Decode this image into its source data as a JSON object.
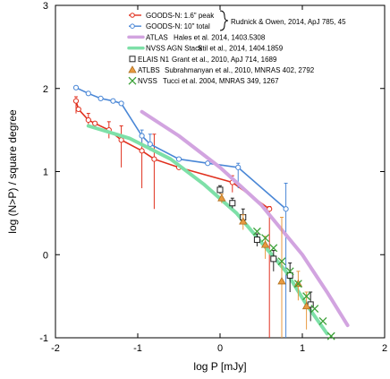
{
  "chart_data": {
    "type": "scatter",
    "xlabel": "log P [mJy]",
    "ylabel": "log (N>P) / square degree",
    "xlim": [
      -2,
      2
    ],
    "ylim": [
      -1,
      3
    ],
    "x_ticks": [
      "-2",
      "-1",
      "0",
      "1",
      "2"
    ],
    "y_ticks": [
      "-1",
      "0",
      "1",
      "2",
      "3"
    ],
    "grid": false,
    "legend_position": "top-right",
    "brace_text": "Rudnick & Owen, 2014, ApJ 785, 45",
    "series": [
      {
        "name": "GOODS-N: 1.6\" peak",
        "kind": "line-open-markers",
        "color": "#e0301e",
        "points": [
          {
            "x": -1.75,
            "y": 1.85,
            "lo": 1.7,
            "hi": 1.9
          },
          {
            "x": -1.72,
            "y": 1.75
          },
          {
            "x": -1.6,
            "y": 1.62,
            "lo": 1.55,
            "hi": 1.7
          },
          {
            "x": -1.52,
            "y": 1.58
          },
          {
            "x": -1.35,
            "y": 1.5,
            "lo": 1.4,
            "hi": 1.6
          },
          {
            "x": -1.2,
            "y": 1.38,
            "lo": 1.05,
            "hi": 1.55
          },
          {
            "x": -0.95,
            "y": 1.25,
            "lo": 0.8,
            "hi": 1.45
          },
          {
            "x": -0.8,
            "y": 1.15,
            "lo": 0.55,
            "hi": 1.45
          },
          {
            "x": -0.5,
            "y": 1.05
          },
          {
            "x": 0.15,
            "y": 0.87,
            "lo": 0.75,
            "hi": 0.95
          },
          {
            "x": 0.6,
            "y": 0.55,
            "lo": -1.0,
            "hi": 0.58
          }
        ]
      },
      {
        "name": "GOODS-N: 10\" total",
        "kind": "line-open-markers",
        "color": "#4a87d6",
        "points": [
          {
            "x": -1.75,
            "y": 2.01
          },
          {
            "x": -1.6,
            "y": 1.94
          },
          {
            "x": -1.45,
            "y": 1.88
          },
          {
            "x": -1.3,
            "y": 1.85
          },
          {
            "x": -1.2,
            "y": 1.82
          },
          {
            "x": -0.95,
            "y": 1.43,
            "lo": 1.35,
            "hi": 1.5
          },
          {
            "x": -0.85,
            "y": 1.33,
            "lo": 1.25,
            "hi": 1.45
          },
          {
            "x": -0.5,
            "y": 1.15
          },
          {
            "x": -0.15,
            "y": 1.1
          },
          {
            "x": 0.22,
            "y": 1.05,
            "lo": 0.8,
            "hi": 1.1
          },
          {
            "x": 0.8,
            "y": 0.55,
            "lo": -1.0,
            "hi": 0.86
          }
        ]
      },
      {
        "name": "ATLAS",
        "ref": "Hales et al. 2014, 1403.5308",
        "kind": "line",
        "color": "#d2a4e0",
        "points": [
          {
            "x": -0.95,
            "y": 1.72
          },
          {
            "x": -0.5,
            "y": 1.43
          },
          {
            "x": 0.0,
            "y": 1.05
          },
          {
            "x": 0.5,
            "y": 0.6
          },
          {
            "x": 1.0,
            "y": 0.0
          },
          {
            "x": 1.3,
            "y": -0.45
          },
          {
            "x": 1.55,
            "y": -0.85
          }
        ]
      },
      {
        "name": "NVSS AGN Stack",
        "ref": "Stil et al., 2014, 1404.1859",
        "kind": "line",
        "color": "#7ee0a8",
        "points": [
          {
            "x": -1.6,
            "y": 1.55
          },
          {
            "x": -1.1,
            "y": 1.4
          },
          {
            "x": -0.6,
            "y": 1.15
          },
          {
            "x": -0.2,
            "y": 0.85
          },
          {
            "x": 0.2,
            "y": 0.5
          },
          {
            "x": 0.5,
            "y": 0.15
          },
          {
            "x": 0.8,
            "y": -0.2
          },
          {
            "x": 1.05,
            "y": -0.6
          },
          {
            "x": 1.3,
            "y": -0.95
          }
        ]
      },
      {
        "name": "ELAIS N1",
        "ref": "Grant et al., 2010, ApJ 714, 1689",
        "kind": "square",
        "color": "#222222",
        "points": [
          {
            "x": 0.0,
            "y": 0.78,
            "lo": 0.73,
            "hi": 0.83
          },
          {
            "x": 0.15,
            "y": 0.62,
            "lo": 0.56,
            "hi": 0.68
          },
          {
            "x": 0.28,
            "y": 0.45,
            "lo": 0.38,
            "hi": 0.55
          },
          {
            "x": 0.45,
            "y": 0.18,
            "lo": 0.1,
            "hi": 0.25
          },
          {
            "x": 0.65,
            "y": -0.05,
            "lo": -0.2,
            "hi": 0.05
          },
          {
            "x": 0.85,
            "y": -0.25,
            "lo": -0.45,
            "hi": -0.1
          },
          {
            "x": 1.1,
            "y": -0.6,
            "lo": -0.8,
            "hi": -0.45
          }
        ]
      },
      {
        "name": "ATLBS",
        "ref": "Subrahmanyan et al., 2010, MNRAS 402, 2792",
        "kind": "triangle",
        "color": "#e89a40",
        "points": [
          {
            "x": 0.02,
            "y": 0.68,
            "lo": 0.62,
            "hi": 0.73
          },
          {
            "x": 0.28,
            "y": 0.4,
            "lo": 0.3,
            "hi": 0.48
          },
          {
            "x": 0.55,
            "y": 0.12,
            "lo": -0.05,
            "hi": 0.22
          },
          {
            "x": 0.75,
            "y": -0.32,
            "lo": -1.0,
            "hi": 0.45
          },
          {
            "x": 0.95,
            "y": -0.35,
            "lo": -0.55,
            "hi": -0.2
          },
          {
            "x": 1.05,
            "y": -0.62,
            "lo": -0.9,
            "hi": -0.45
          }
        ]
      },
      {
        "name": "NVSS",
        "ref": "Tucci et al. 2004, MNRAS 349, 1267",
        "kind": "x",
        "color": "#3aa036",
        "points": [
          {
            "x": 0.45,
            "y": 0.28
          },
          {
            "x": 0.55,
            "y": 0.2
          },
          {
            "x": 0.65,
            "y": 0.08
          },
          {
            "x": 0.75,
            "y": -0.08
          },
          {
            "x": 0.85,
            "y": -0.2
          },
          {
            "x": 0.95,
            "y": -0.35
          },
          {
            "x": 1.05,
            "y": -0.5
          },
          {
            "x": 1.15,
            "y": -0.65
          },
          {
            "x": 1.25,
            "y": -0.8
          },
          {
            "x": 1.35,
            "y": -0.98
          }
        ]
      }
    ]
  }
}
